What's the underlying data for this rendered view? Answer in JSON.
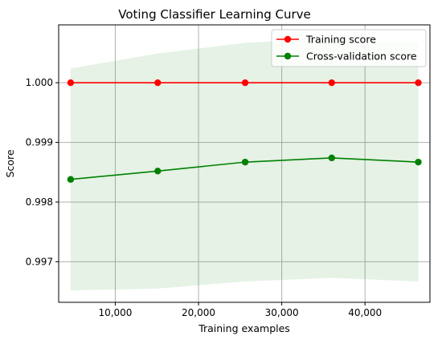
{
  "chart_data": {
    "type": "line",
    "title": "Voting Classifier Learning Curve",
    "xlabel": "Training examples",
    "ylabel": "Score",
    "xlim": [
      3200,
      47800
    ],
    "ylim": [
      0.99632,
      1.00097
    ],
    "grid": true,
    "legend_position": "top-right",
    "x_ticks": [
      10000,
      20000,
      30000,
      40000
    ],
    "x_tick_labels": [
      "10,000",
      "20,000",
      "30,000",
      "40,000"
    ],
    "y_ticks": [
      1.0,
      0.999,
      0.998,
      0.997
    ],
    "y_tick_labels": [
      "1.000",
      "0.999",
      "0.998",
      "0.997"
    ],
    "x": [
      4640,
      15100,
      25600,
      36000,
      46400
    ],
    "series": [
      {
        "name": "Training score",
        "color": "#ff0000",
        "values": [
          1.0,
          1.0,
          1.0,
          1.0,
          1.0
        ]
      },
      {
        "name": "Cross-validation score",
        "color": "#008000",
        "values": [
          0.99838,
          0.99852,
          0.99867,
          0.99874,
          0.99867
        ],
        "band_upper": [
          1.00024,
          1.00049,
          1.00067,
          1.00074,
          1.00067
        ],
        "band_lower": [
          0.99652,
          0.99655,
          0.99667,
          0.99673,
          0.99667
        ],
        "band_color": "#008000"
      }
    ]
  }
}
